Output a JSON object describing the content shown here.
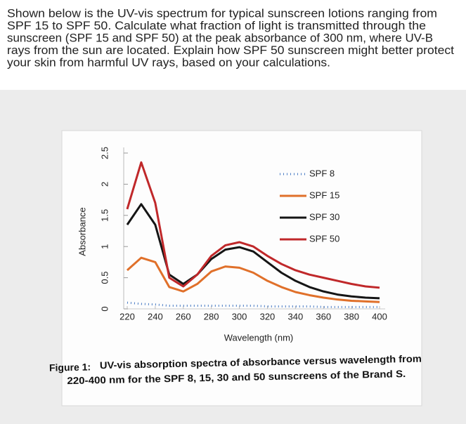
{
  "question_lines": [
    "Shown below is the UV-vis spectrum for typical sunscreen lotions ranging from",
    "SPF 15 to SPF 50. Calculate what fraction of light is transmitted through the",
    "sunscreen (SPF 15 and SPF 50) at the peak absorbance of 300 nm, where UV-B",
    "rays from the sun are located. Explain how SPF 50 sunscreen might better protect",
    "your skin from harmful UV rays, based on your calculations."
  ],
  "chart_data": {
    "type": "line",
    "x_label": "Wavelength (nm)",
    "y_label": "Absorbance",
    "x": [
      220,
      230,
      240,
      250,
      260,
      270,
      280,
      290,
      300,
      310,
      320,
      330,
      340,
      350,
      360,
      370,
      380,
      390,
      400
    ],
    "xlim": [
      216,
      404
    ],
    "xticks": [
      220,
      240,
      260,
      280,
      300,
      320,
      340,
      360,
      380,
      400
    ],
    "ylim": [
      0,
      2.5
    ],
    "yticks": [
      0,
      0.5,
      1,
      1.5,
      2,
      2.5
    ],
    "legend": "upper right",
    "series": [
      {
        "name": "SPF 8",
        "color": "#4a7cc4",
        "style": "dotted",
        "values": [
          0.1,
          0.08,
          0.07,
          0.05,
          0.05,
          0.05,
          0.05,
          0.05,
          0.05,
          0.05,
          0.04,
          0.04,
          0.04,
          0.04,
          0.03,
          0.03,
          0.03,
          0.03,
          0.03
        ]
      },
      {
        "name": "SPF 15",
        "color": "#e0702a",
        "style": "solid",
        "values": [
          0.62,
          0.82,
          0.75,
          0.35,
          0.28,
          0.4,
          0.6,
          0.68,
          0.66,
          0.58,
          0.45,
          0.35,
          0.27,
          0.22,
          0.18,
          0.15,
          0.13,
          0.12,
          0.11
        ]
      },
      {
        "name": "SPF 30",
        "color": "#151515",
        "style": "solid",
        "values": [
          1.35,
          1.68,
          1.35,
          0.55,
          0.4,
          0.55,
          0.8,
          0.95,
          0.99,
          0.92,
          0.75,
          0.58,
          0.45,
          0.35,
          0.28,
          0.23,
          0.2,
          0.18,
          0.17
        ]
      },
      {
        "name": "SPF 50",
        "color": "#c0282a",
        "style": "solid",
        "values": [
          1.6,
          2.35,
          1.7,
          0.5,
          0.36,
          0.55,
          0.85,
          1.02,
          1.07,
          1.0,
          0.85,
          0.72,
          0.62,
          0.55,
          0.5,
          0.45,
          0.4,
          0.36,
          0.34
        ]
      }
    ]
  },
  "caption_label": "Figure 1:",
  "caption_lines": [
    "UV-vis absorption spectra of absorbance versus wavelength from",
    "220-400 nm for the SPF 8, 15, 30 and 50 sunscreens of the Brand S."
  ]
}
